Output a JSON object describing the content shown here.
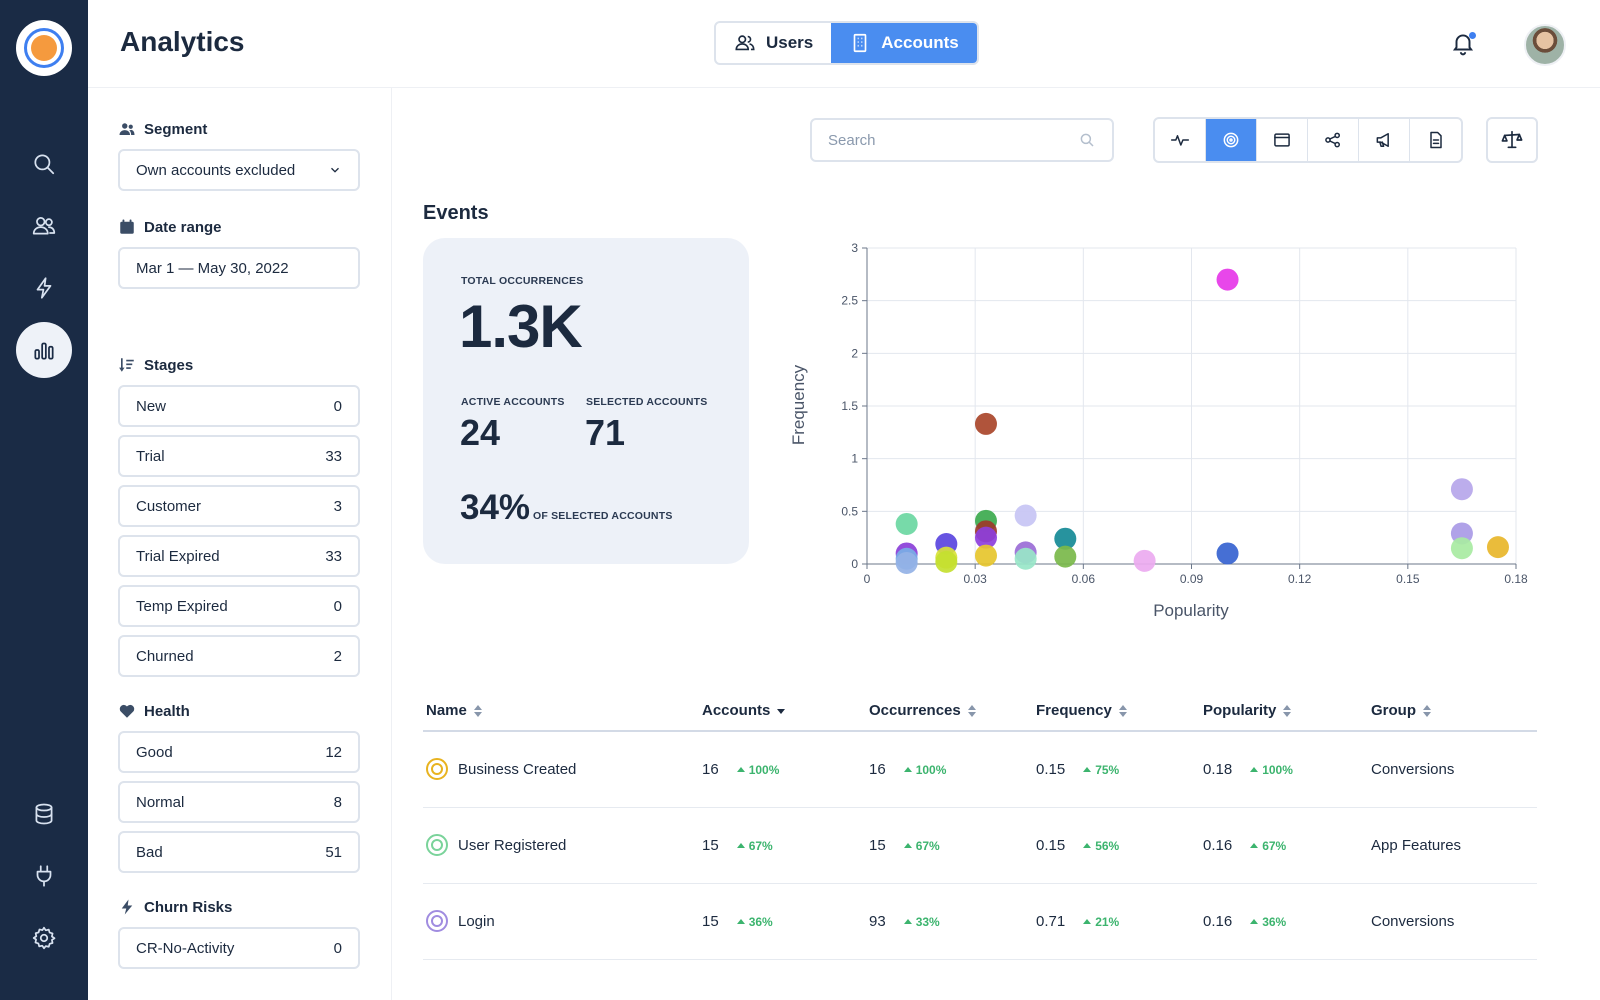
{
  "header": {
    "title": "Analytics",
    "tabs": [
      {
        "label": "Users",
        "active": false
      },
      {
        "label": "Accounts",
        "active": true
      }
    ]
  },
  "sidebar": {
    "items": [
      "search-icon",
      "users-icon",
      "lightning-icon",
      "bar-chart-icon",
      "database-icon",
      "plug-icon",
      "gear-icon"
    ],
    "active": "bar-chart-icon"
  },
  "filters": {
    "segment": {
      "label": "Segment",
      "value": "Own accounts excluded"
    },
    "date_range": {
      "label": "Date range",
      "value": "Mar 1 — May 30, 2022"
    },
    "stages": {
      "label": "Stages",
      "items": [
        {
          "name": "New",
          "count": "0"
        },
        {
          "name": "Trial",
          "count": "33"
        },
        {
          "name": "Customer",
          "count": "3"
        },
        {
          "name": "Trial Expired",
          "count": "33"
        },
        {
          "name": "Temp Expired",
          "count": "0"
        },
        {
          "name": "Churned",
          "count": "2"
        }
      ]
    },
    "health": {
      "label": "Health",
      "items": [
        {
          "name": "Good",
          "count": "12"
        },
        {
          "name": "Normal",
          "count": "8"
        },
        {
          "name": "Bad",
          "count": "51"
        }
      ]
    },
    "churn_risks": {
      "label": "Churn Risks",
      "items": [
        {
          "name": "CR-No-Activity",
          "count": "0"
        }
      ]
    }
  },
  "search": {
    "placeholder": "Search"
  },
  "view_toolbar": {
    "buttons": [
      "activity-icon",
      "target-icon",
      "calendar-icon",
      "share-nodes-icon",
      "megaphone-icon",
      "document-icon"
    ],
    "active": "target-icon",
    "compare": "scale-icon"
  },
  "events": {
    "title": "Events",
    "total_label": "TOTAL OCCURRENCES",
    "total_value": "1.3K",
    "active_label": "ACTIVE ACCOUNTS",
    "active_value": "24",
    "selected_label": "SELECTED ACCOUNTS",
    "selected_value": "71",
    "percent_value": "34%",
    "percent_label": "OF SELECTED ACCOUNTS"
  },
  "chart_data": {
    "type": "scatter",
    "xlabel": "Popularity",
    "ylabel": "Frequency",
    "xlim": [
      0,
      0.18
    ],
    "ylim": [
      0,
      3
    ],
    "xticks": [
      "0",
      "0.03",
      "0.06",
      "0.09",
      "0.12",
      "0.15",
      "0.18"
    ],
    "yticks": [
      "0",
      "0.5",
      "1",
      "1.5",
      "2",
      "2.5",
      "3"
    ],
    "grid": true,
    "points": [
      {
        "x": 0.1,
        "y": 2.7,
        "color": "#e637e8"
      },
      {
        "x": 0.033,
        "y": 1.33,
        "color": "#a9452a"
      },
      {
        "x": 0.165,
        "y": 0.71,
        "color": "#b6a6ea"
      },
      {
        "x": 0.011,
        "y": 0.38,
        "color": "#6bd7a2"
      },
      {
        "x": 0.044,
        "y": 0.46,
        "color": "#c7c4f4"
      },
      {
        "x": 0.033,
        "y": 0.41,
        "color": "#3caa4e"
      },
      {
        "x": 0.033,
        "y": 0.31,
        "color": "#9c3a2a"
      },
      {
        "x": 0.033,
        "y": 0.25,
        "color": "#8d3fdc"
      },
      {
        "x": 0.055,
        "y": 0.24,
        "color": "#158a96"
      },
      {
        "x": 0.022,
        "y": 0.19,
        "color": "#5a45de"
      },
      {
        "x": 0.011,
        "y": 0.1,
        "color": "#8a3fd8"
      },
      {
        "x": 0.044,
        "y": 0.11,
        "color": "#9a6cd6"
      },
      {
        "x": 0.165,
        "y": 0.29,
        "color": "#a99ae6"
      },
      {
        "x": 0.1,
        "y": 0.1,
        "color": "#3663d0"
      },
      {
        "x": 0.175,
        "y": 0.16,
        "color": "#e8b62a"
      },
      {
        "x": 0.165,
        "y": 0.15,
        "color": "#a8eaa2"
      },
      {
        "x": 0.033,
        "y": 0.08,
        "color": "#e6c52c"
      },
      {
        "x": 0.022,
        "y": 0.06,
        "color": "#d8e23a"
      },
      {
        "x": 0.022,
        "y": 0.02,
        "color": "#c4e030"
      },
      {
        "x": 0.055,
        "y": 0.07,
        "color": "#7ab84a"
      },
      {
        "x": 0.011,
        "y": 0.05,
        "color": "#78aee6"
      },
      {
        "x": 0.011,
        "y": 0.01,
        "color": "#94b2e6"
      },
      {
        "x": 0.044,
        "y": 0.05,
        "color": "#98e6c8"
      },
      {
        "x": 0.077,
        "y": 0.03,
        "color": "#ecaaf0"
      }
    ]
  },
  "table": {
    "columns": [
      {
        "label": "Name",
        "sort": "both"
      },
      {
        "label": "Accounts",
        "sort": "desc"
      },
      {
        "label": "Occurrences",
        "sort": "both"
      },
      {
        "label": "Frequency",
        "sort": "both"
      },
      {
        "label": "Popularity",
        "sort": "both"
      },
      {
        "label": "Group",
        "sort": "both"
      }
    ],
    "rows": [
      {
        "icon_color": "#e8b320",
        "name": "Business Created",
        "accounts": "16",
        "accounts_delta": "100%",
        "occurrences": "16",
        "occurrences_delta": "100%",
        "frequency": "0.15",
        "frequency_delta": "75%",
        "popularity": "0.18",
        "popularity_delta": "100%",
        "group": "Conversions"
      },
      {
        "icon_color": "#7ad39a",
        "name": "User Registered",
        "accounts": "15",
        "accounts_delta": "67%",
        "occurrences": "15",
        "occurrences_delta": "67%",
        "frequency": "0.15",
        "frequency_delta": "56%",
        "popularity": "0.16",
        "popularity_delta": "67%",
        "group": "App Features"
      },
      {
        "icon_color": "#a08ce0",
        "name": "Login",
        "accounts": "15",
        "accounts_delta": "36%",
        "occurrences": "93",
        "occurrences_delta": "33%",
        "frequency": "0.71",
        "frequency_delta": "21%",
        "popularity": "0.16",
        "popularity_delta": "36%",
        "group": "Conversions"
      }
    ]
  }
}
